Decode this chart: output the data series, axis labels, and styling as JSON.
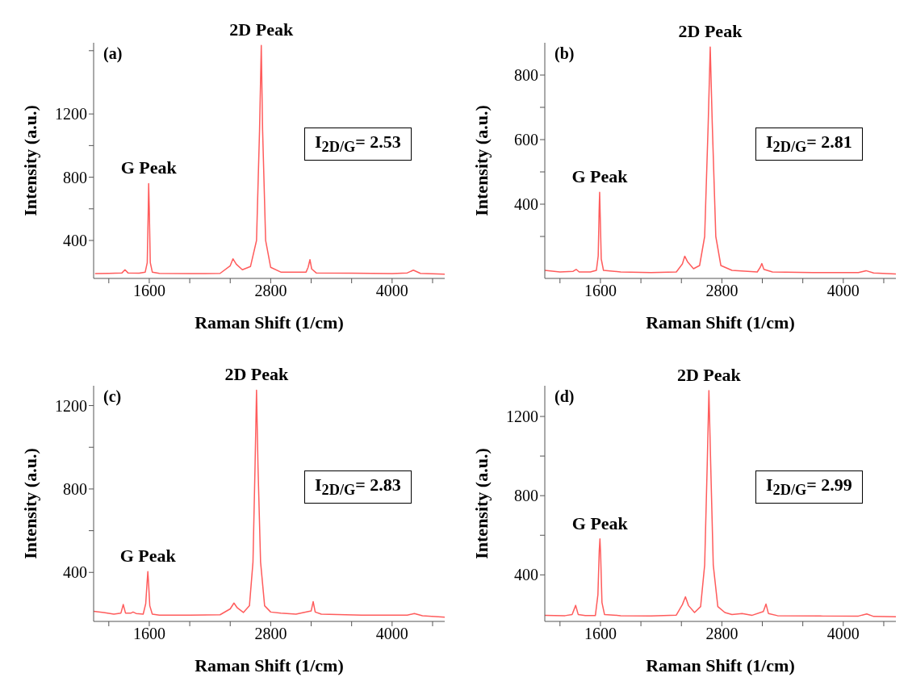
{
  "chart_data": [
    {
      "type": "line",
      "title": "(a)",
      "xlabel": "Raman Shift (1/cm)",
      "ylabel": "Intensity (a.u.)",
      "xlim": [
        1050,
        4520
      ],
      "ylim": [
        160,
        1650
      ],
      "xticks": [
        {
          "value": 1200,
          "label": null
        },
        1600,
        {
          "value": 2000,
          "label": null
        },
        {
          "value": 2400,
          "label": null
        },
        2800,
        {
          "value": 3200,
          "label": null
        },
        {
          "value": 3600,
          "label": null
        },
        4000,
        {
          "value": 4400,
          "label": null
        }
      ],
      "yticks": [
        400,
        {
          "value": 600,
          "label": null
        },
        800,
        {
          "value": 1000,
          "label": null
        },
        1200,
        {
          "value": 1600,
          "label": null
        }
      ],
      "x": [
        1064,
        1200,
        1330,
        1360,
        1390,
        1500,
        1560,
        1580,
        1590,
        1594,
        1600,
        1610,
        1630,
        1700,
        2000,
        2300,
        2400,
        2427,
        2460,
        2520,
        2600,
        2660,
        2690,
        2707,
        2720,
        2750,
        2800,
        2900,
        3000,
        3150,
        3170,
        3188,
        3205,
        3250,
        3600,
        4000,
        4150,
        4210,
        4280,
        4520
      ],
      "series": [
        {
          "color": "#ff5c5c",
          "values": [
            190,
            192,
            195,
            215,
            195,
            193,
            200,
            260,
            600,
            760,
            600,
            260,
            200,
            192,
            190,
            192,
            240,
            284,
            250,
            215,
            235,
            400,
            1100,
            1633,
            1100,
            400,
            230,
            200,
            200,
            200,
            230,
            279,
            220,
            195,
            193,
            190,
            195,
            212,
            192,
            187
          ]
        }
      ],
      "annotations": [
        {
          "text": "2D Peak",
          "x": 2707,
          "y": 1633
        },
        {
          "text": "G Peak",
          "x": 1594,
          "y": 760
        },
        "I$_{2D/G}$= 2.53"
      ]
    },
    {
      "type": "line",
      "title": "(b)",
      "xlabel": "Raman Shift (1/cm)",
      "ylabel": "Intensity (a.u.)",
      "xlim": [
        1050,
        4520
      ],
      "ylim": [
        170,
        900
      ],
      "xticks": [
        {
          "value": 1200,
          "label": null
        },
        1600,
        {
          "value": 2000,
          "label": null
        },
        {
          "value": 2400,
          "label": null
        },
        2800,
        {
          "value": 3200,
          "label": null
        },
        {
          "value": 3600,
          "label": null
        },
        4000,
        {
          "value": 4400,
          "label": null
        }
      ],
      "yticks": [
        {
          "value": 300,
          "label": null
        },
        400,
        {
          "value": 500,
          "label": null
        },
        600,
        {
          "value": 700,
          "label": null
        },
        800
      ],
      "x": [
        1050,
        1200,
        1330,
        1360,
        1390,
        1500,
        1560,
        1578,
        1587,
        1592,
        1598,
        1608,
        1630,
        1800,
        2100,
        2350,
        2410,
        2433,
        2460,
        2520,
        2580,
        2630,
        2665,
        2685,
        2705,
        2740,
        2790,
        2900,
        3150,
        3180,
        3195,
        3215,
        3300,
        3700,
        4150,
        4225,
        4300,
        4520
      ],
      "series": [
        {
          "color": "#ff5c5c",
          "values": [
            195,
            190,
            192,
            198,
            190,
            190,
            195,
            240,
            380,
            437,
            360,
            230,
            195,
            190,
            188,
            190,
            215,
            239,
            222,
            200,
            210,
            300,
            650,
            887,
            650,
            300,
            210,
            195,
            190,
            205,
            216,
            198,
            190,
            188,
            188,
            194,
            187,
            184
          ]
        }
      ],
      "annotations": [
        {
          "text": "2D Peak",
          "x": 2685,
          "y": 887
        },
        {
          "text": "G Peak",
          "x": 1592,
          "y": 437
        },
        "I$_{2D/G}$= 2.81"
      ]
    },
    {
      "type": "line",
      "title": "(c)",
      "xlabel": "Raman Shift (1/cm)",
      "ylabel": "Intensity (a.u.)",
      "xlim": [
        1050,
        4520
      ],
      "ylim": [
        165,
        1295
      ],
      "xticks": [
        {
          "value": 1200,
          "label": null
        },
        1600,
        {
          "value": 2000,
          "label": null
        },
        {
          "value": 2400,
          "label": null
        },
        2800,
        {
          "value": 3200,
          "label": null
        },
        {
          "value": 3600,
          "label": null
        },
        4000,
        {
          "value": 4400,
          "label": null
        }
      ],
      "yticks": [
        400,
        {
          "value": 600,
          "label": null
        },
        800,
        {
          "value": 1000,
          "label": null
        },
        1200
      ],
      "x": [
        1050,
        1150,
        1250,
        1320,
        1343,
        1365,
        1420,
        1440,
        1470,
        1540,
        1565,
        1578,
        1586,
        1594,
        1605,
        1630,
        1700,
        2000,
        2300,
        2400,
        2437,
        2470,
        2530,
        2590,
        2625,
        2645,
        2660,
        2675,
        2700,
        2740,
        2800,
        2900,
        3050,
        3200,
        3220,
        3240,
        3300,
        3700,
        4150,
        4220,
        4300,
        4520
      ],
      "series": [
        {
          "color": "#ff5c5c",
          "values": [
            213,
            208,
            200,
            205,
            246,
            205,
            205,
            210,
            203,
            200,
            250,
            350,
            404,
            340,
            240,
            200,
            195,
            195,
            197,
            225,
            253,
            230,
            208,
            240,
            450,
            900,
            1274,
            900,
            450,
            240,
            210,
            205,
            200,
            215,
            260,
            210,
            200,
            195,
            195,
            203,
            192,
            185
          ]
        }
      ],
      "annotations": [
        {
          "text": "2D Peak",
          "x": 2660,
          "y": 1274
        },
        {
          "text": "G Peak",
          "x": 1586,
          "y": 404
        },
        "I$_{2D/G}$= 2.83"
      ]
    },
    {
      "type": "line",
      "title": "(d)",
      "xlabel": "Raman Shift (1/cm)",
      "ylabel": "Intensity (a.u.)",
      "xlim": [
        1050,
        4520
      ],
      "ylim": [
        165,
        1355
      ],
      "xticks": [
        {
          "value": 1200,
          "label": null
        },
        1600,
        {
          "value": 2000,
          "label": null
        },
        {
          "value": 2400,
          "label": null
        },
        2800,
        {
          "value": 3200,
          "label": null
        },
        {
          "value": 3600,
          "label": null
        },
        4000,
        {
          "value": 4400,
          "label": null
        }
      ],
      "yticks": [
        400,
        {
          "value": 600,
          "label": null
        },
        800,
        {
          "value": 1000,
          "label": null
        },
        1200
      ],
      "x": [
        1050,
        1250,
        1320,
        1355,
        1380,
        1450,
        1550,
        1575,
        1588,
        1595,
        1602,
        1615,
        1640,
        1800,
        2100,
        2350,
        2410,
        2440,
        2470,
        2530,
        2590,
        2630,
        2655,
        2672,
        2690,
        2715,
        2760,
        2830,
        2900,
        3000,
        3100,
        3210,
        3236,
        3260,
        3350,
        3800,
        4150,
        4232,
        4300,
        4520
      ],
      "series": [
        {
          "color": "#ff5c5c",
          "values": [
            196,
            194,
            200,
            246,
            200,
            195,
            195,
            300,
            520,
            582,
            500,
            260,
            200,
            194,
            193,
            197,
            250,
            289,
            245,
            210,
            240,
            450,
            950,
            1331,
            950,
            450,
            240,
            210,
            200,
            205,
            196,
            215,
            253,
            205,
            194,
            192,
            192,
            203,
            190,
            188
          ]
        }
      ],
      "annotations": [
        {
          "text": "2D Peak",
          "x": 2672,
          "y": 1331
        },
        {
          "text": "G Peak",
          "x": 1595,
          "y": 582
        },
        "I$_{2D/G}$= 2.99"
      ]
    }
  ]
}
